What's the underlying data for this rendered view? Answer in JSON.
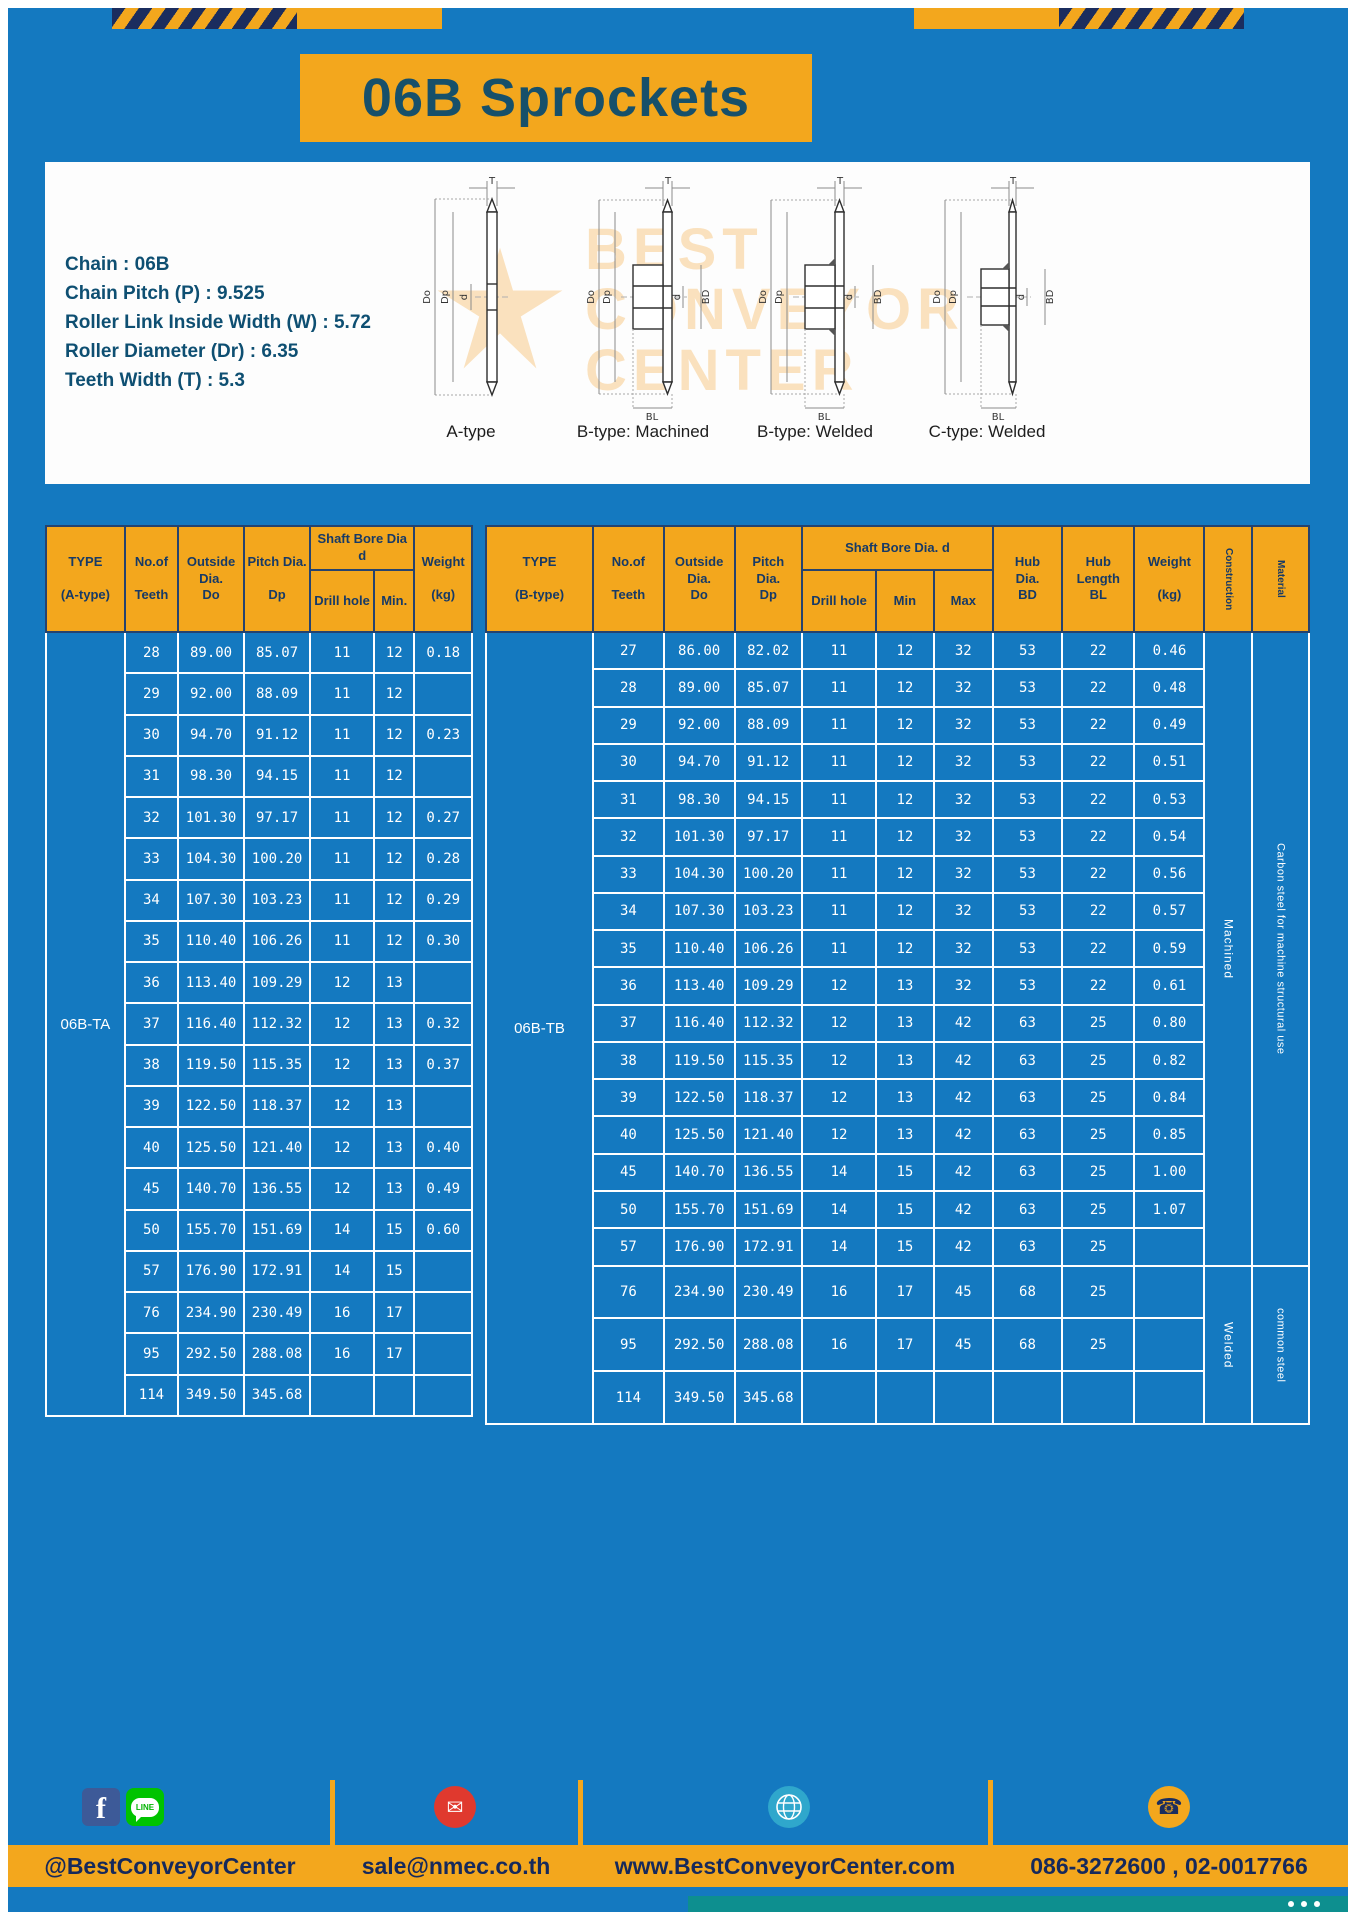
{
  "page": {
    "title": "06B Sprockets"
  },
  "colors": {
    "page_blue": "#1479c0",
    "accent_yellow": "#f3a71d",
    "navy": "#1b2d5e",
    "title_teal": "#17506a",
    "table_border_navy": "#25436f",
    "footer_teal": "#0d8f8f",
    "facebook_blue": "#3d5a98",
    "line_green": "#00c300",
    "email_red": "#e0392e",
    "globe_teal": "#2fa7cc"
  },
  "specs": {
    "lines": [
      "Chain : 06B",
      "Chain Pitch (P) : 9.525",
      "Roller Link Inside Width (W) : 5.72",
      "Roller Diameter (Dr) : 6.35",
      "Teeth Width (T) : 5.3"
    ]
  },
  "watermark": {
    "lines": [
      "BEST",
      "CONVEYOR",
      "CENTER"
    ]
  },
  "drawings": [
    {
      "label": "A-type",
      "dims": {
        "t": "T",
        "outer": "Do",
        "pitch": "Dp",
        "bore": "d"
      }
    },
    {
      "label": "B-type: Machined",
      "dims": {
        "t": "T",
        "outer": "Do",
        "pitch": "Dp",
        "bore": "d",
        "hub": "BD",
        "hublen": "BL"
      }
    },
    {
      "label": "B-type: Welded",
      "dims": {
        "t": "T",
        "outer": "Do",
        "pitch": "Dp",
        "bore": "d",
        "hub": "BD",
        "hublen": "BL"
      }
    },
    {
      "label": "C-type: Welded",
      "dims": {
        "t": "T",
        "outer": "Do",
        "pitch": "Dp",
        "bore": "d",
        "hub": "BD",
        "hublen": "BL"
      }
    }
  ],
  "table_a": {
    "type_label": "06B-TA",
    "head": {
      "type": "TYPE\n\n(A-type)",
      "teeth": "No.of\n\nTeeth",
      "outside": "Outside\nDia.\nDo",
      "pitch": "Pitch Dia.\n\nDp",
      "shaft": "Shaft Bore Dia d",
      "drill": "Drill hole",
      "min": "Min.",
      "weight": "Weight\n\n(kg)"
    },
    "rows": [
      [
        "28",
        "89.00",
        "85.07",
        "11",
        "12",
        "0.18"
      ],
      [
        "29",
        "92.00",
        "88.09",
        "11",
        "12",
        ""
      ],
      [
        "30",
        "94.70",
        "91.12",
        "11",
        "12",
        "0.23"
      ],
      [
        "31",
        "98.30",
        "94.15",
        "11",
        "12",
        ""
      ],
      [
        "32",
        "101.30",
        "97.17",
        "11",
        "12",
        "0.27"
      ],
      [
        "33",
        "104.30",
        "100.20",
        "11",
        "12",
        "0.28"
      ],
      [
        "34",
        "107.30",
        "103.23",
        "11",
        "12",
        "0.29"
      ],
      [
        "35",
        "110.40",
        "106.26",
        "11",
        "12",
        "0.30"
      ],
      [
        "36",
        "113.40",
        "109.29",
        "12",
        "13",
        ""
      ],
      [
        "37",
        "116.40",
        "112.32",
        "12",
        "13",
        "0.32"
      ],
      [
        "38",
        "119.50",
        "115.35",
        "12",
        "13",
        "0.37"
      ],
      [
        "39",
        "122.50",
        "118.37",
        "12",
        "13",
        ""
      ],
      [
        "40",
        "125.50",
        "121.40",
        "12",
        "13",
        "0.40"
      ],
      [
        "45",
        "140.70",
        "136.55",
        "12",
        "13",
        "0.49"
      ],
      [
        "50",
        "155.70",
        "151.69",
        "14",
        "15",
        "0.60"
      ],
      [
        "57",
        "176.90",
        "172.91",
        "14",
        "15",
        ""
      ],
      [
        "76",
        "234.90",
        "230.49",
        "16",
        "17",
        ""
      ],
      [
        "95",
        "292.50",
        "288.08",
        "16",
        "17",
        ""
      ],
      [
        "114",
        "349.50",
        "345.68",
        "",
        "",
        ""
      ]
    ]
  },
  "table_b": {
    "type_label": "06B-TB",
    "head": {
      "type": "TYPE\n\n(B-type)",
      "teeth": "No.of\n\nTeeth",
      "outside": "Outside\nDia.\nDo",
      "pitch": "Pitch\nDia.\nDp",
      "shaft": "Shaft Bore Dia. d",
      "drill": "Drill hole",
      "min": "Min",
      "max": "Max",
      "hub_dia": "Hub\nDia.\nBD",
      "hub_len": "Hub\nLength\nBL",
      "weight": "Weight\n\n(kg)",
      "construction": "Construction",
      "material": "Material"
    },
    "rows": [
      [
        "27",
        "86.00",
        "82.02",
        "11",
        "12",
        "32",
        "53",
        "22",
        "0.46"
      ],
      [
        "28",
        "89.00",
        "85.07",
        "11",
        "12",
        "32",
        "53",
        "22",
        "0.48"
      ],
      [
        "29",
        "92.00",
        "88.09",
        "11",
        "12",
        "32",
        "53",
        "22",
        "0.49"
      ],
      [
        "30",
        "94.70",
        "91.12",
        "11",
        "12",
        "32",
        "53",
        "22",
        "0.51"
      ],
      [
        "31",
        "98.30",
        "94.15",
        "11",
        "12",
        "32",
        "53",
        "22",
        "0.53"
      ],
      [
        "32",
        "101.30",
        "97.17",
        "11",
        "12",
        "32",
        "53",
        "22",
        "0.54"
      ],
      [
        "33",
        "104.30",
        "100.20",
        "11",
        "12",
        "32",
        "53",
        "22",
        "0.56"
      ],
      [
        "34",
        "107.30",
        "103.23",
        "11",
        "12",
        "32",
        "53",
        "22",
        "0.57"
      ],
      [
        "35",
        "110.40",
        "106.26",
        "11",
        "12",
        "32",
        "53",
        "22",
        "0.59"
      ],
      [
        "36",
        "113.40",
        "109.29",
        "12",
        "13",
        "32",
        "53",
        "22",
        "0.61"
      ],
      [
        "37",
        "116.40",
        "112.32",
        "12",
        "13",
        "42",
        "63",
        "25",
        "0.80"
      ],
      [
        "38",
        "119.50",
        "115.35",
        "12",
        "13",
        "42",
        "63",
        "25",
        "0.82"
      ],
      [
        "39",
        "122.50",
        "118.37",
        "12",
        "13",
        "42",
        "63",
        "25",
        "0.84"
      ],
      [
        "40",
        "125.50",
        "121.40",
        "12",
        "13",
        "42",
        "63",
        "25",
        "0.85"
      ],
      [
        "45",
        "140.70",
        "136.55",
        "14",
        "15",
        "42",
        "63",
        "25",
        "1.00"
      ],
      [
        "50",
        "155.70",
        "151.69",
        "14",
        "15",
        "42",
        "63",
        "25",
        "1.07"
      ],
      [
        "57",
        "176.90",
        "172.91",
        "14",
        "15",
        "42",
        "63",
        "25",
        ""
      ],
      [
        "76",
        "234.90",
        "230.49",
        "16",
        "17",
        "45",
        "68",
        "25",
        ""
      ],
      [
        "95",
        "292.50",
        "288.08",
        "16",
        "17",
        "45",
        "68",
        "25",
        ""
      ],
      [
        "114",
        "349.50",
        "345.68",
        "",
        "",
        "",
        "",
        "",
        ""
      ]
    ],
    "construction_groups": [
      {
        "label": "Machined",
        "rows": 17
      },
      {
        "label": "Welded",
        "rows": 3
      }
    ],
    "material_groups": [
      {
        "label": "Carbon steel for machine structural use",
        "rows": 17
      },
      {
        "label": "common steel",
        "rows": 3
      }
    ]
  },
  "footer": {
    "social": "@BestConveyorCenter",
    "email": "sale@nmec.co.th",
    "website": "www.BestConveyorCenter.com",
    "phone": "086-3272600 , 02-0017766"
  },
  "icons": {
    "facebook": "f",
    "line": "LINE",
    "email": "✉",
    "phone": "☎"
  }
}
